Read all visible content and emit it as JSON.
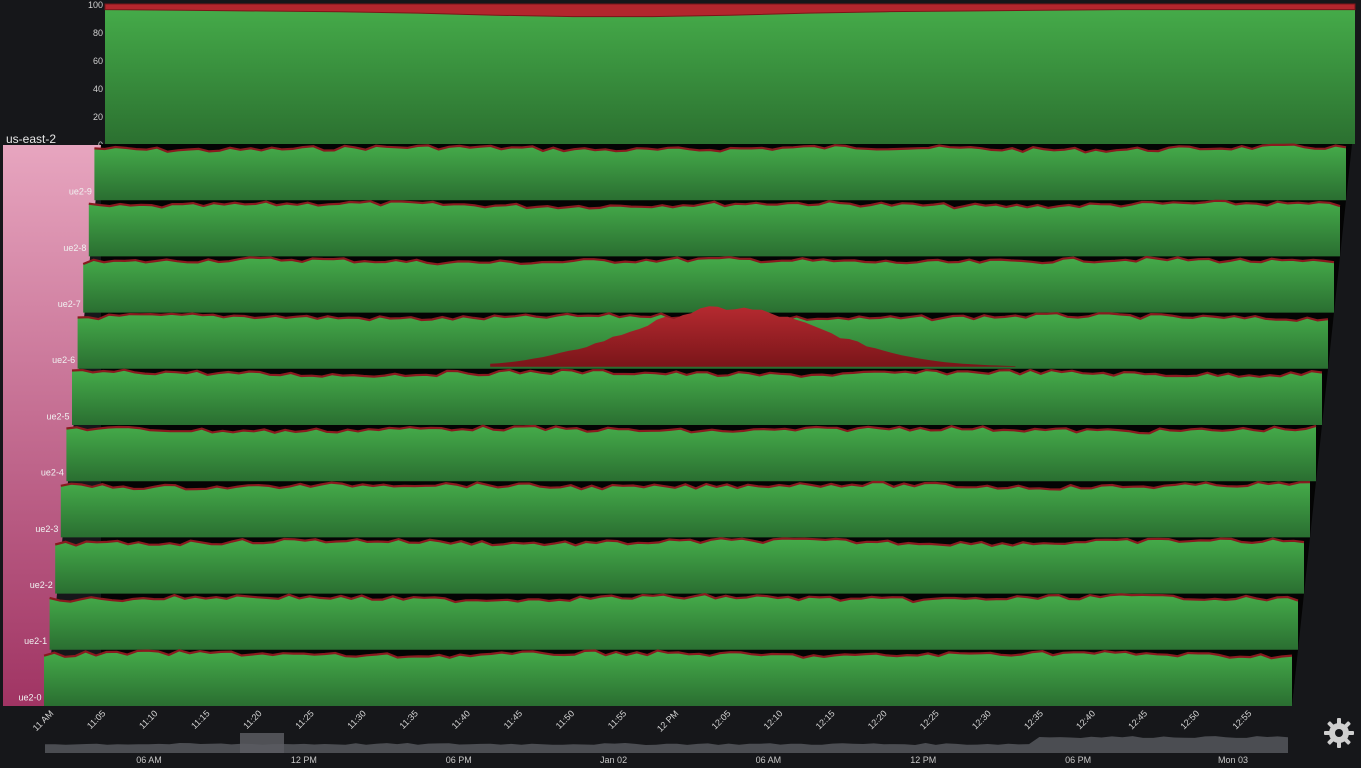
{
  "chart_data": {
    "type": "area",
    "title": "",
    "aggregate": {
      "y_ticks": [
        "100",
        "80",
        "60",
        "40",
        "20",
        "0"
      ],
      "ylim": [
        0,
        100
      ],
      "series": [
        {
          "status": "ok",
          "color": "#3fa645"
        },
        {
          "status": "error",
          "color": "#b3262d"
        }
      ],
      "error_pct": [
        4,
        4.5,
        5,
        5.5,
        6.5,
        8,
        9,
        9,
        8,
        6.5,
        5.5,
        5,
        4.5,
        4,
        4,
        4,
        4
      ]
    },
    "group_label": "us-east-2",
    "rows": [
      {
        "label": "ue2-9",
        "error_peak": 0
      },
      {
        "label": "ue2-8",
        "error_peak": 0
      },
      {
        "label": "ue2-7",
        "error_peak": 0
      },
      {
        "label": "ue2-6",
        "error_peak": 55
      },
      {
        "label": "ue2-5",
        "error_peak": 0
      },
      {
        "label": "ue2-4",
        "error_peak": 0
      },
      {
        "label": "ue2-3",
        "error_peak": 0
      },
      {
        "label": "ue2-2",
        "error_peak": 0
      },
      {
        "label": "ue2-1",
        "error_peak": 0
      },
      {
        "label": "ue2-0",
        "error_peak": 0
      }
    ],
    "x_ticks": [
      "11 AM",
      "11:05",
      "11:10",
      "11:15",
      "11:20",
      "11:25",
      "11:30",
      "11:35",
      "11:40",
      "11:45",
      "11:50",
      "11:55",
      "12 PM",
      "12:05",
      "12:10",
      "12:15",
      "12:20",
      "12:25",
      "12:30",
      "12:35",
      "12:40",
      "12:45",
      "12:50",
      "12:55"
    ],
    "overview_ticks": [
      "06 AM",
      "12 PM",
      "06 PM",
      "Jan 02",
      "06 AM",
      "12 PM",
      "06 PM",
      "Mon 03"
    ],
    "colors": {
      "ok": "#3fa645",
      "error": "#b3262d",
      "group_light": "#e7a5bf",
      "group_dark": "#a03463",
      "background": "#16171a"
    }
  },
  "controls": {
    "settings_icon": "gear-icon"
  }
}
